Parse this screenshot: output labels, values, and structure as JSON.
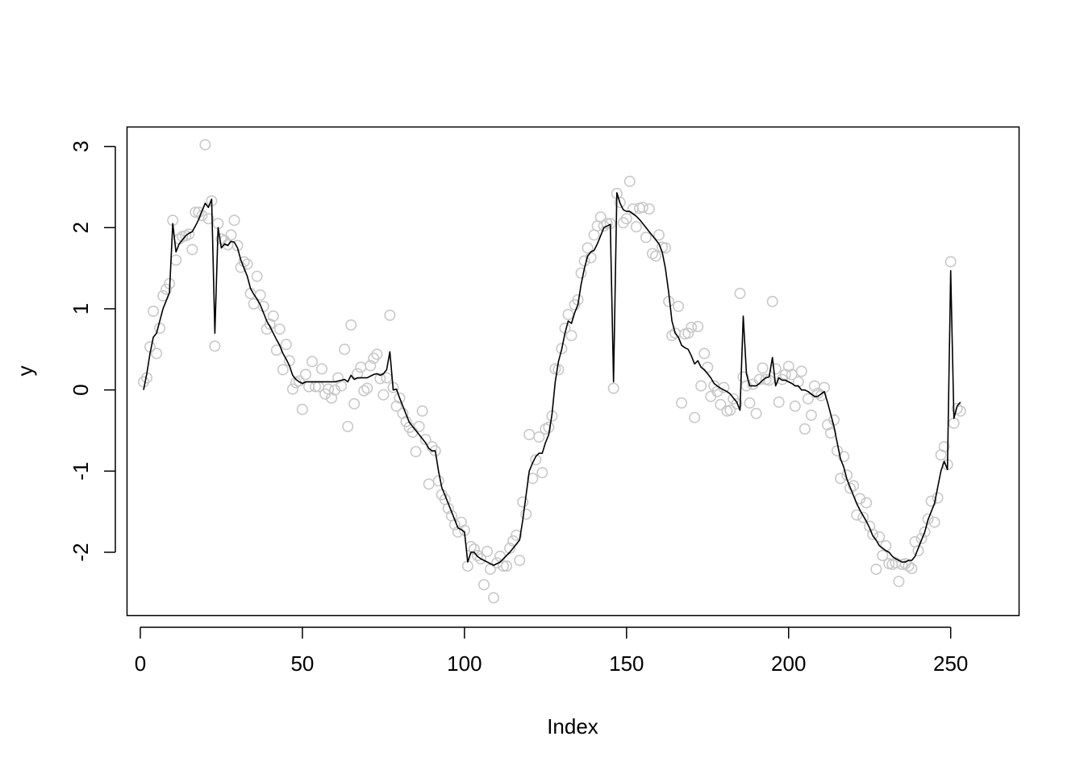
{
  "chart_data": {
    "type": "scatter",
    "title": "",
    "xlabel": "Index",
    "ylabel": "y",
    "xlim": [
      -4.1,
      271.1
    ],
    "ylim": [
      -2.78,
      3.24
    ],
    "x_ticks": [
      0,
      50,
      100,
      150,
      200,
      250
    ],
    "y_ticks": [
      -2,
      -1,
      0,
      1,
      2,
      3
    ],
    "grid": false,
    "legend": "none",
    "colors": {
      "points": "#c8c8c8",
      "line": "#000000",
      "axes": "#000000"
    },
    "series": [
      {
        "kind": "points",
        "x_start": 1,
        "values": [
          0.1,
          0.15,
          0.53,
          0.97,
          0.45,
          0.76,
          1.16,
          1.24,
          1.31,
          2.09,
          1.6,
          1.86,
          1.89,
          1.9,
          1.92,
          1.73,
          2.19,
          2.19,
          2.15,
          3.02,
          2.11,
          2.33,
          0.54,
          2.05,
          1.86,
          1.84,
          1.79,
          1.91,
          2.09,
          1.78,
          1.51,
          1.58,
          1.55,
          1.19,
          1.06,
          1.4,
          1.17,
          1.03,
          0.75,
          0.81,
          0.91,
          0.49,
          0.75,
          0.25,
          0.56,
          0.36,
          0.01,
          0.09,
          0.11,
          -0.24,
          0.19,
          0.04,
          0.35,
          0.04,
          0.04,
          0.26,
          -0.05,
          0.01,
          -0.1,
          0.0,
          0.15,
          0.05,
          0.5,
          -0.45,
          0.8,
          -0.17,
          0.2,
          0.28,
          -0.01,
          0.02,
          0.3,
          0.39,
          0.44,
          0.14,
          -0.06,
          0.15,
          0.92,
          0.03,
          -0.2,
          -0.1,
          -0.29,
          -0.39,
          -0.46,
          -0.52,
          -0.76,
          -0.45,
          -0.26,
          -0.61,
          -1.16,
          -0.7,
          -0.75,
          -1.12,
          -1.29,
          -1.35,
          -1.46,
          -1.55,
          -1.66,
          -1.75,
          -1.63,
          -1.73,
          -2.17,
          -1.93,
          -1.96,
          -2.04,
          -2.08,
          -2.4,
          -1.99,
          -2.21,
          -2.56,
          -2.13,
          -2.05,
          -2.17,
          -2.17,
          -1.95,
          -1.86,
          -1.79,
          -2.1,
          -1.38,
          -1.53,
          -0.55,
          -1.09,
          -0.86,
          -0.58,
          -1.02,
          -0.48,
          -0.46,
          -0.32,
          0.26,
          0.25,
          0.51,
          0.76,
          0.93,
          0.67,
          1.05,
          1.11,
          1.44,
          1.59,
          1.75,
          1.63,
          1.91,
          2.02,
          2.13,
          2.02,
          2.05,
          2.05,
          0.02,
          2.42,
          2.31,
          2.06,
          2.11,
          2.57,
          2.23,
          2.01,
          2.24,
          2.25,
          1.88,
          2.23,
          1.68,
          1.65,
          1.91,
          1.76,
          1.75,
          1.09,
          0.67,
          0.7,
          1.03,
          -0.16,
          0.69,
          0.7,
          0.77,
          -0.34,
          0.78,
          0.05,
          0.45,
          0.28,
          -0.08,
          0.05,
          -0.02,
          -0.18,
          0.03,
          -0.26,
          -0.25,
          -0.11,
          -0.17,
          1.19,
          0.16,
          0.05,
          -0.16,
          0.07,
          -0.29,
          0.13,
          0.27,
          0.13,
          0.12,
          1.09,
          0.26,
          -0.15,
          0.13,
          0.19,
          0.29,
          0.19,
          -0.2,
          0.1,
          0.23,
          -0.48,
          -0.11,
          -0.31,
          0.05,
          -0.04,
          -0.07,
          0.03,
          -0.43,
          -0.53,
          -0.37,
          -0.75,
          -1.09,
          -0.82,
          -1.05,
          -1.21,
          -1.18,
          -1.54,
          -1.34,
          -1.57,
          -1.39,
          -1.68,
          -1.78,
          -2.21,
          -1.81,
          -2.04,
          -1.92,
          -2.14,
          -2.15,
          -2.13,
          -2.36,
          -2.15,
          -2.14,
          -2.17,
          -2.2,
          -1.87,
          -1.98,
          -1.83,
          -1.75,
          -1.59,
          -1.37,
          -1.63,
          -1.33,
          -0.8,
          -0.7,
          -0.92,
          1.58,
          -0.41,
          -0.23,
          -0.26
        ]
      },
      {
        "kind": "line",
        "x_start": 1,
        "values": [
          0.0,
          0.2,
          0.45,
          0.65,
          0.7,
          0.85,
          1.0,
          1.1,
          1.2,
          2.05,
          1.7,
          1.8,
          1.85,
          1.9,
          1.93,
          1.95,
          2.02,
          2.1,
          2.2,
          2.3,
          2.25,
          2.35,
          0.7,
          2.0,
          1.75,
          1.8,
          1.78,
          1.83,
          1.82,
          1.75,
          1.6,
          1.5,
          1.4,
          1.25,
          1.18,
          1.12,
          1.05,
          0.95,
          0.85,
          0.78,
          0.7,
          0.62,
          0.55,
          0.45,
          0.38,
          0.3,
          0.18,
          0.13,
          0.1,
          0.08,
          0.1,
          0.1,
          0.1,
          0.1,
          0.1,
          0.1,
          0.1,
          0.1,
          0.1,
          0.1,
          0.11,
          0.12,
          0.13,
          0.1,
          0.18,
          0.13,
          0.15,
          0.15,
          0.15,
          0.15,
          0.17,
          0.19,
          0.2,
          0.18,
          0.2,
          0.25,
          0.47,
          0.0,
          0.01,
          -0.1,
          -0.2,
          -0.3,
          -0.4,
          -0.45,
          -0.5,
          -0.55,
          -0.6,
          -0.65,
          -0.72,
          -0.75,
          -0.75,
          -1.0,
          -1.2,
          -1.3,
          -1.4,
          -1.5,
          -1.6,
          -1.7,
          -1.72,
          -1.75,
          -2.12,
          -2.0,
          -2.0,
          -2.05,
          -2.08,
          -2.1,
          -2.12,
          -2.14,
          -2.16,
          -2.14,
          -2.12,
          -2.08,
          -2.04,
          -2.0,
          -1.95,
          -1.9,
          -1.85,
          -1.6,
          -1.3,
          -1.0,
          -0.9,
          -0.82,
          -0.78,
          -0.78,
          -0.65,
          -0.55,
          -0.3,
          0.1,
          0.35,
          0.5,
          0.7,
          0.85,
          0.82,
          0.95,
          1.05,
          1.3,
          1.5,
          1.65,
          1.7,
          1.72,
          1.8,
          1.9,
          2.0,
          2.02,
          2.04,
          0.1,
          2.43,
          2.3,
          2.22,
          2.2,
          2.2,
          2.17,
          2.14,
          2.1,
          2.05,
          2.0,
          1.95,
          1.9,
          1.85,
          1.8,
          1.7,
          1.5,
          1.2,
          0.85,
          0.7,
          0.65,
          0.55,
          0.52,
          0.5,
          0.42,
          0.32,
          0.36,
          0.28,
          0.25,
          0.2,
          0.15,
          0.08,
          0.05,
          0.02,
          0.0,
          -0.02,
          -0.05,
          -0.1,
          -0.15,
          -0.25,
          0.91,
          0.2,
          0.05,
          0.05,
          0.05,
          0.08,
          0.12,
          0.15,
          0.16,
          0.4,
          0.05,
          0.15,
          0.12,
          0.12,
          0.1,
          0.08,
          0.05,
          0.05,
          0.0,
          0.0,
          -0.02,
          -0.05,
          -0.08,
          -0.08,
          -0.05,
          -0.02,
          -0.15,
          -0.3,
          -0.45,
          -0.65,
          -0.85,
          -0.95,
          -1.1,
          -1.2,
          -1.3,
          -1.4,
          -1.48,
          -1.55,
          -1.62,
          -1.7,
          -1.8,
          -1.85,
          -1.92,
          -1.95,
          -1.98,
          -2.0,
          -2.05,
          -2.08,
          -2.1,
          -2.12,
          -2.12,
          -2.1,
          -2.1,
          -2.05,
          -1.95,
          -1.85,
          -1.75,
          -1.6,
          -1.5,
          -1.4,
          -1.2,
          -1.0,
          -0.88,
          -0.98,
          1.47,
          -0.35,
          -0.2,
          -0.15
        ]
      }
    ]
  }
}
